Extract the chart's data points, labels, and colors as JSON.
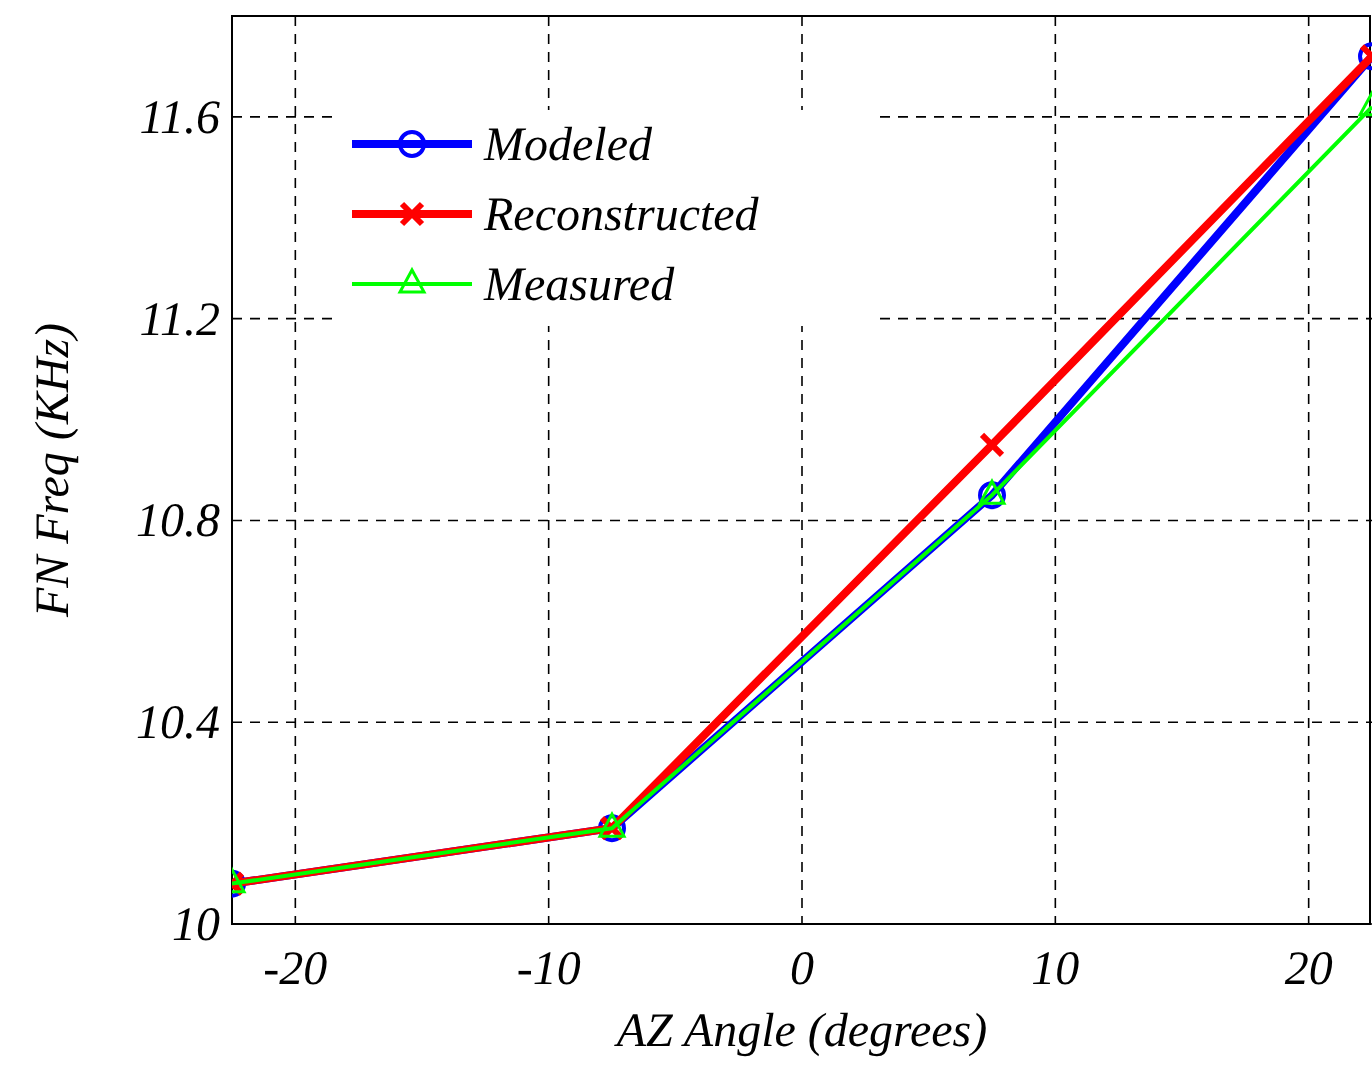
{
  "chart_data": {
    "type": "line",
    "xlabel": "AZ Angle (degrees)",
    "ylabel": "FN Freq (KHz)",
    "x": [
      -22.5,
      -7.5,
      7.5,
      22.5
    ],
    "series": [
      {
        "name": "Modeled",
        "color": "#0000ff",
        "marker": "circle",
        "values": [
          10.08,
          10.19,
          10.85,
          11.72
        ]
      },
      {
        "name": "Reconstructed",
        "color": "#ff0000",
        "marker": "cross",
        "values": [
          10.08,
          10.19,
          10.95,
          11.72
        ]
      },
      {
        "name": "Measured",
        "color": "#00ff00",
        "marker": "triangle",
        "values": [
          10.08,
          10.19,
          10.85,
          11.62
        ]
      }
    ],
    "xlim": [
      -22.5,
      22.5
    ],
    "xticks": [
      -20,
      -10,
      0,
      10,
      20
    ],
    "ylim": [
      10,
      11.8
    ],
    "yticks": [
      10,
      10.4,
      10.8,
      11.2,
      11.6
    ],
    "grid": true,
    "legend": "top left",
    "line_style": "solid"
  }
}
